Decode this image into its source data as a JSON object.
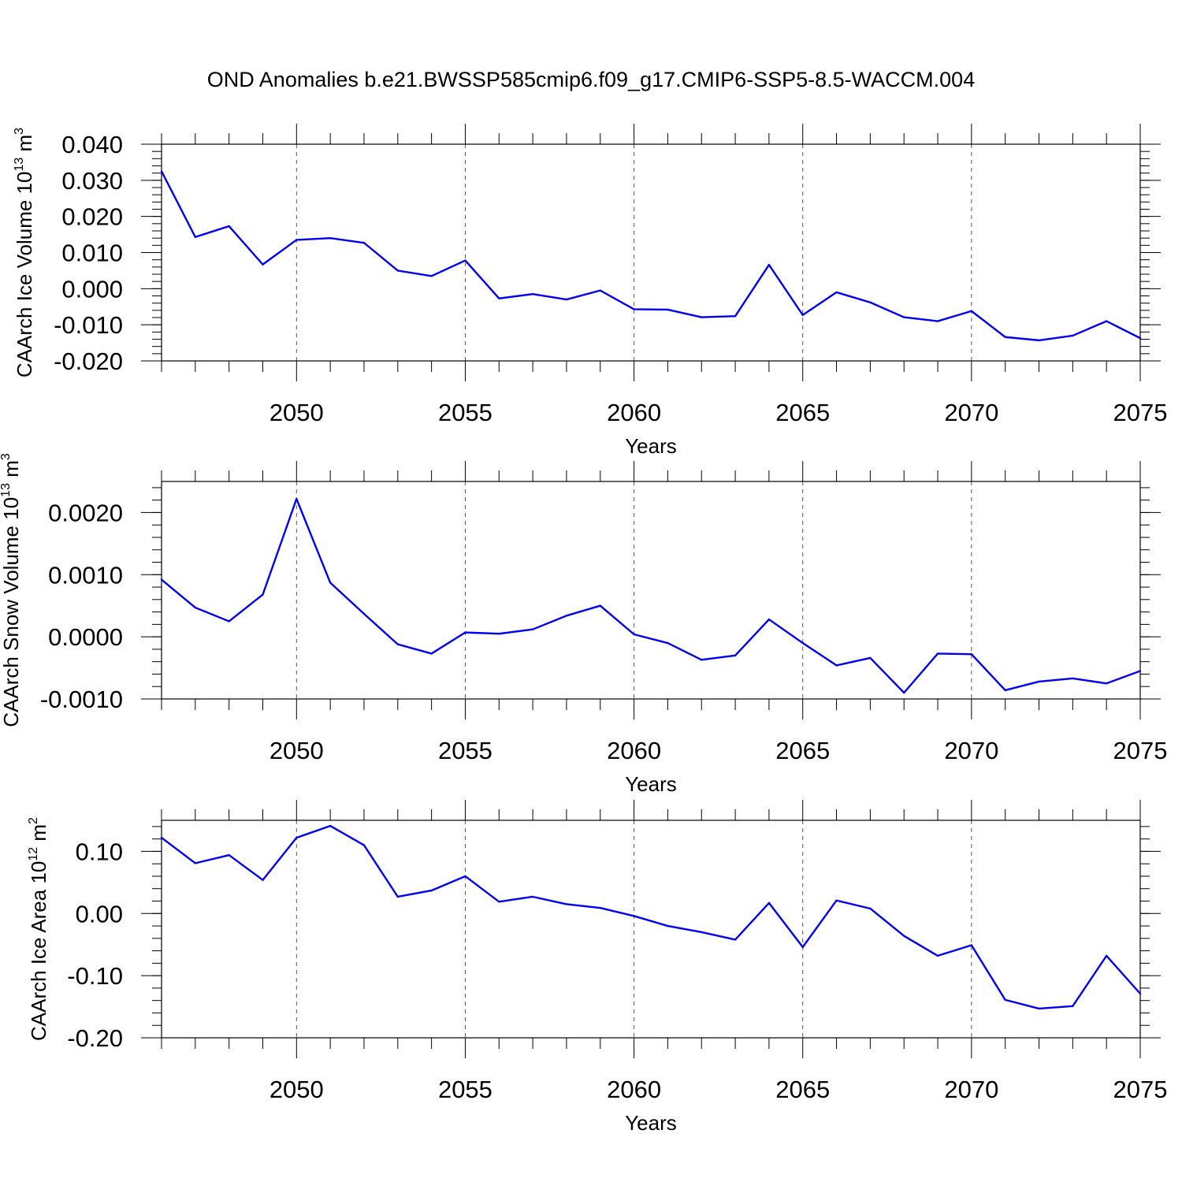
{
  "title": "OND Anomalies b.e21.BWSSP585cmip6.f09_g17.CMIP6-SSP5-8.5-WACCM.004",
  "colors": {
    "line": "#0000ee",
    "axis": "#000000",
    "grid": "#555555"
  },
  "chart_data": [
    {
      "type": "line",
      "ylabel": "CAArch Ice Volume 10",
      "ylabel_exp": "13",
      "ylabel_unit": "m",
      "ylabel_unit_exp": "3",
      "xlabel": "Years",
      "xlim": [
        2046,
        2075
      ],
      "ylim": [
        -0.02,
        0.04
      ],
      "xticks": [
        2050,
        2055,
        2060,
        2065,
        2070,
        2075
      ],
      "xtick_labels": [
        "2050",
        "2055",
        "2060",
        "2065",
        "2070",
        "2075"
      ],
      "yticks": [
        -0.02,
        -0.01,
        0.0,
        0.01,
        0.02,
        0.03,
        0.04
      ],
      "ytick_labels": [
        "-0.020",
        "-0.010",
        "0.000",
        "0.010",
        "0.020",
        "0.030",
        "0.040"
      ],
      "yminor": 0.002,
      "grid": "vertical dashed",
      "x": [
        2046,
        2047,
        2048,
        2049,
        2050,
        2051,
        2052,
        2053,
        2054,
        2055,
        2056,
        2057,
        2058,
        2059,
        2060,
        2061,
        2062,
        2063,
        2064,
        2065,
        2066,
        2067,
        2068,
        2069,
        2070,
        2071,
        2072,
        2073,
        2074,
        2075
      ],
      "series": [
        {
          "values": [
            0.0325,
            0.0143,
            0.0173,
            0.0067,
            0.0135,
            0.014,
            0.0127,
            0.005,
            0.0035,
            0.0078,
            -0.0027,
            -0.0015,
            -0.003,
            -0.0005,
            -0.0057,
            -0.0058,
            -0.0079,
            -0.0076,
            0.0066,
            -0.0073,
            -0.001,
            -0.0038,
            -0.0079,
            -0.009,
            -0.0062,
            -0.0134,
            -0.0143,
            -0.013,
            -0.009,
            -0.0137
          ]
        }
      ]
    },
    {
      "type": "line",
      "ylabel": "CAArch Snow Volume 10",
      "ylabel_exp": "13",
      "ylabel_unit": "m",
      "ylabel_unit_exp": "3",
      "xlabel": "Years",
      "xlim": [
        2046,
        2075
      ],
      "ylim": [
        -0.001,
        0.0025
      ],
      "xticks": [
        2050,
        2055,
        2060,
        2065,
        2070,
        2075
      ],
      "xtick_labels": [
        "2050",
        "2055",
        "2060",
        "2065",
        "2070",
        "2075"
      ],
      "yticks": [
        -0.001,
        0.0,
        0.001,
        0.002
      ],
      "ytick_labels": [
        "-0.0010",
        "0.0000",
        "0.0010",
        "0.0020"
      ],
      "yminor": 0.0002,
      "grid": "vertical dashed",
      "x": [
        2046,
        2047,
        2048,
        2049,
        2050,
        2051,
        2052,
        2053,
        2054,
        2055,
        2056,
        2057,
        2058,
        2059,
        2060,
        2061,
        2062,
        2063,
        2064,
        2065,
        2066,
        2067,
        2068,
        2069,
        2070,
        2071,
        2072,
        2073,
        2074,
        2075
      ],
      "series": [
        {
          "values": [
            0.00092,
            0.00047,
            0.00025,
            0.00068,
            0.00222,
            0.00087,
            0.00037,
            -0.00012,
            -0.00027,
            7e-05,
            5e-05,
            0.00012,
            0.00034,
            0.0005,
            4e-05,
            -0.0001,
            -0.00037,
            -0.0003,
            0.00028,
            -0.0001,
            -0.00046,
            -0.00034,
            -0.0009,
            -0.00027,
            -0.00028,
            -0.00086,
            -0.00072,
            -0.00067,
            -0.00075,
            -0.00055
          ]
        }
      ]
    },
    {
      "type": "line",
      "ylabel": "CAArch Ice Area 10",
      "ylabel_exp": "12",
      "ylabel_unit": "m",
      "ylabel_unit_exp": "2",
      "xlabel": "Years",
      "xlim": [
        2046,
        2075
      ],
      "ylim": [
        -0.2,
        0.15
      ],
      "xticks": [
        2050,
        2055,
        2060,
        2065,
        2070,
        2075
      ],
      "xtick_labels": [
        "2050",
        "2055",
        "2060",
        "2065",
        "2070",
        "2075"
      ],
      "yticks": [
        -0.2,
        -0.1,
        0.0,
        0.1
      ],
      "ytick_labels": [
        "-0.20",
        "-0.10",
        "0.00",
        "0.10"
      ],
      "yminor": 0.02,
      "grid": "vertical dashed",
      "x": [
        2046,
        2047,
        2048,
        2049,
        2050,
        2051,
        2052,
        2053,
        2054,
        2055,
        2056,
        2057,
        2058,
        2059,
        2060,
        2061,
        2062,
        2063,
        2064,
        2065,
        2066,
        2067,
        2068,
        2069,
        2070,
        2071,
        2072,
        2073,
        2074,
        2075
      ],
      "series": [
        {
          "values": [
            0.122,
            0.081,
            0.094,
            0.054,
            0.122,
            0.141,
            0.11,
            0.027,
            0.037,
            0.06,
            0.019,
            0.027,
            0.015,
            0.009,
            -0.004,
            -0.02,
            -0.03,
            -0.042,
            0.017,
            -0.054,
            0.021,
            0.008,
            -0.036,
            -0.068,
            -0.051,
            -0.139,
            -0.153,
            -0.149,
            -0.068,
            -0.129
          ]
        }
      ]
    }
  ]
}
